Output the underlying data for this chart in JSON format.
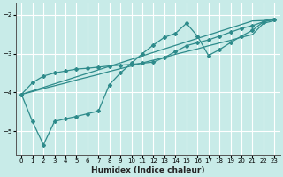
{
  "xlabel": "Humidex (Indice chaleur)",
  "bg_color": "#c8ebe8",
  "line_color": "#2e8b8b",
  "grid_color": "#ffffff",
  "xlim": [
    -0.5,
    23.5
  ],
  "ylim": [
    -5.6,
    -1.7
  ],
  "xticks": [
    0,
    1,
    2,
    3,
    4,
    5,
    6,
    7,
    8,
    9,
    10,
    11,
    12,
    13,
    14,
    15,
    16,
    17,
    18,
    19,
    20,
    21,
    22,
    23
  ],
  "yticks": [
    -5,
    -4,
    -3,
    -2
  ],
  "smooth1_x": [
    0,
    1,
    2,
    3,
    4,
    5,
    6,
    7,
    8,
    9,
    10,
    11,
    12,
    13,
    14,
    15,
    16,
    17,
    18,
    19,
    20,
    21,
    22,
    23
  ],
  "smooth1_y": [
    -4.05,
    -3.98,
    -3.9,
    -3.83,
    -3.76,
    -3.68,
    -3.61,
    -3.54,
    -3.46,
    -3.39,
    -3.32,
    -3.24,
    -3.17,
    -3.1,
    -3.02,
    -2.95,
    -2.88,
    -2.8,
    -2.73,
    -2.66,
    -2.58,
    -2.51,
    -2.22,
    -2.15
  ],
  "smooth2_x": [
    0,
    1,
    2,
    3,
    4,
    5,
    6,
    7,
    8,
    9,
    10,
    11,
    12,
    13,
    14,
    15,
    16,
    17,
    18,
    19,
    20,
    21,
    22,
    23
  ],
  "smooth2_y": [
    -4.05,
    -3.96,
    -3.87,
    -3.78,
    -3.69,
    -3.6,
    -3.51,
    -3.42,
    -3.33,
    -3.24,
    -3.15,
    -3.06,
    -2.97,
    -2.88,
    -2.79,
    -2.7,
    -2.61,
    -2.52,
    -2.43,
    -2.34,
    -2.25,
    -2.16,
    -2.15,
    -2.1
  ],
  "zigzag1_x": [
    0,
    1,
    2,
    3,
    4,
    5,
    6,
    7,
    8,
    9,
    10,
    11,
    12,
    13,
    14,
    15,
    16,
    17,
    18,
    19,
    20,
    21,
    22,
    23
  ],
  "zigzag1_y": [
    -4.05,
    -3.75,
    -3.58,
    -3.5,
    -3.45,
    -3.4,
    -3.38,
    -3.35,
    -3.32,
    -3.3,
    -3.28,
    -3.25,
    -3.22,
    -3.1,
    -2.95,
    -2.8,
    -2.72,
    -2.65,
    -2.55,
    -2.45,
    -2.35,
    -2.28,
    -2.18,
    -2.12
  ],
  "zigzag2_x": [
    0,
    1,
    2,
    3,
    4,
    5,
    6,
    7,
    8,
    9,
    10,
    11,
    12,
    13,
    14,
    15,
    16,
    17,
    18,
    19,
    20,
    21,
    22,
    23
  ],
  "zigzag2_y": [
    -4.05,
    -4.75,
    -5.35,
    -4.75,
    -4.68,
    -4.62,
    -4.55,
    -4.48,
    -3.8,
    -3.5,
    -3.25,
    -3.0,
    -2.78,
    -2.58,
    -2.48,
    -2.22,
    -2.55,
    -3.05,
    -2.9,
    -2.72,
    -2.55,
    -2.4,
    -2.18,
    -2.12
  ]
}
